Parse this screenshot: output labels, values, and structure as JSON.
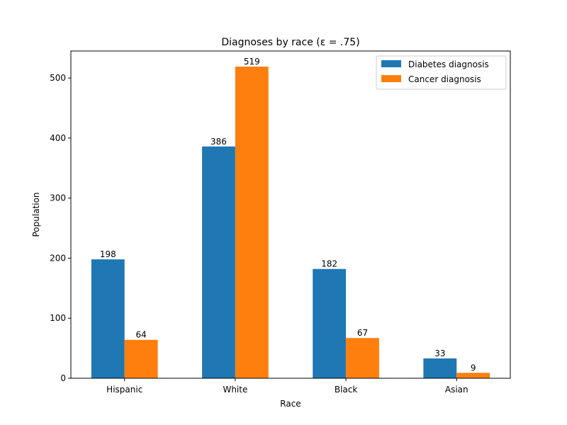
{
  "chart_data": {
    "type": "bar",
    "title": "Diagnoses by race (ε = .75)",
    "xlabel": "Race",
    "ylabel": "Population",
    "categories": [
      "Hispanic",
      "White",
      "Black",
      "Asian"
    ],
    "series": [
      {
        "name": "Diabetes diagnosis",
        "values": [
          198,
          386,
          182,
          33
        ],
        "color": "#1f77b4"
      },
      {
        "name": "Cancer diagnosis",
        "values": [
          64,
          519,
          67,
          9
        ],
        "color": "#ff7f0e"
      }
    ],
    "ylim": [
      0,
      545
    ],
    "yticks": [
      0,
      100,
      200,
      300,
      400,
      500
    ],
    "grid": false,
    "legend_position": "top-right"
  }
}
